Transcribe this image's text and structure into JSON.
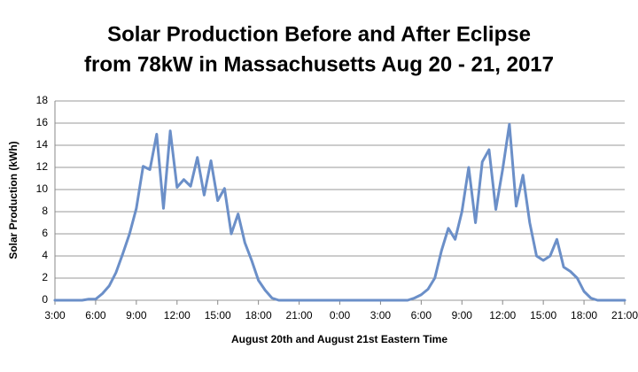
{
  "chart_data": {
    "type": "line",
    "title": [
      "Solar Production Before and After Eclipse",
      "from 78kW in Massachusetts Aug 20 - 21, 2017"
    ],
    "x_label": "August 20th and August 21st Eastern Time",
    "y_label": "Solar Production (kWh)",
    "categories": [
      "3:00",
      null,
      null,
      null,
      null,
      null,
      "6:00",
      null,
      null,
      null,
      null,
      null,
      "9:00",
      null,
      null,
      null,
      null,
      null,
      "12:00",
      null,
      null,
      null,
      null,
      null,
      "15:00",
      null,
      null,
      null,
      null,
      null,
      "18:00",
      null,
      null,
      null,
      null,
      null,
      "21:00",
      null,
      null,
      null,
      null,
      null,
      "0:00",
      null,
      null,
      null,
      null,
      null,
      "3:00",
      null,
      null,
      null,
      null,
      null,
      "6:00",
      null,
      null,
      null,
      null,
      null,
      "9:00",
      null,
      null,
      null,
      null,
      null,
      "12:00",
      null,
      null,
      null,
      null,
      null,
      "15:00",
      null,
      null,
      null,
      null,
      null,
      "18:00",
      null,
      null,
      null,
      null,
      null,
      "21:00"
    ],
    "values": [
      0,
      0,
      0,
      0,
      0,
      0.1,
      0.1,
      0.6,
      1.3,
      2.5,
      4.2,
      6.0,
      8.3,
      12.1,
      11.8,
      15.0,
      8.3,
      15.3,
      10.2,
      10.9,
      10.3,
      12.9,
      9.5,
      12.6,
      9.0,
      10.1,
      6.0,
      7.8,
      5.2,
      3.6,
      1.8,
      0.9,
      0.2,
      0,
      0,
      0,
      0,
      0,
      0,
      0,
      0,
      0,
      0,
      0,
      0,
      0,
      0,
      0,
      0,
      0,
      0,
      0,
      0,
      0.2,
      0.5,
      1.0,
      2.0,
      4.5,
      6.5,
      5.5,
      8.0,
      12.0,
      7.0,
      12.5,
      13.6,
      8.2,
      11.8,
      15.9,
      8.5,
      11.3,
      7.0,
      4.0,
      3.6,
      4.0,
      5.5,
      3.0,
      2.6,
      2.0,
      0.8,
      0.2,
      0,
      0,
      0,
      0,
      0
    ],
    "color": "#6b8fc8",
    "ylim": [
      0,
      18
    ],
    "yticks": [
      0,
      2,
      4,
      6,
      8,
      10,
      12,
      14,
      16,
      18
    ],
    "grid": true
  }
}
